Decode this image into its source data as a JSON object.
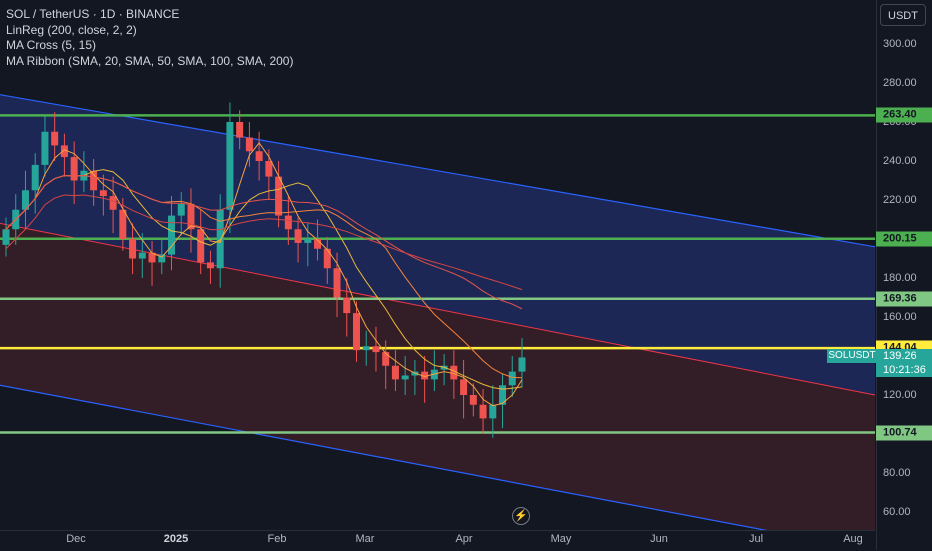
{
  "legend": {
    "symbol": "SOL / TetherUS · 1D · BINANCE",
    "indicator1": "LinReg (200, close, 2, 2)",
    "indicator2": "MA Cross (5, 15)",
    "indicator3": "MA Ribbon (SMA, 20, SMA, 50, SMA, 100, SMA, 200)"
  },
  "currency": "USDT",
  "price_axis": {
    "ticks": [
      "300.00",
      "280.00",
      "260.00",
      "240.00",
      "220.00",
      "200.00",
      "180.00",
      "160.00",
      "120.00",
      "80.00",
      "60.00"
    ]
  },
  "levels": [
    {
      "label": "263.40",
      "value": 263.4,
      "color": "#4caf50"
    },
    {
      "label": "200.15",
      "value": 200.15,
      "color": "#4caf50"
    },
    {
      "label": "169.36",
      "value": 169.36,
      "color": "#81c784"
    },
    {
      "label": "144.04",
      "value": 144.04,
      "color": "#ffeb3b"
    },
    {
      "label": "100.74",
      "value": 100.74,
      "color": "#81c784"
    }
  ],
  "last_price": {
    "symbol": "SOLUSDT",
    "price": "139.26",
    "countdown": "10:21:36"
  },
  "time_axis": {
    "labels": [
      {
        "text": "Dec",
        "bold": false
      },
      {
        "text": "2025",
        "bold": true
      },
      {
        "text": "Feb",
        "bold": false
      },
      {
        "text": "Mar",
        "bold": false
      },
      {
        "text": "Apr",
        "bold": false
      },
      {
        "text": "May",
        "bold": false
      },
      {
        "text": "Jun",
        "bold": false
      },
      {
        "text": "Jul",
        "bold": false
      },
      {
        "text": "Aug",
        "bold": false
      }
    ]
  },
  "colors": {
    "up": "#26a69a",
    "down": "#ef5350",
    "channel_upper": "#1e2a5e",
    "channel_lower": "#3a1e28",
    "channel_line": "#2962ff",
    "mid_line": "#f23645"
  },
  "chart_data": {
    "type": "candlestick",
    "x": [
      "Nov 12",
      "Nov 15",
      "Nov 18",
      "Nov 21",
      "Nov 24",
      "Nov 27",
      "Nov 30",
      "Dec 3",
      "Dec 6",
      "Dec 9",
      "Dec 12",
      "Dec 15",
      "Dec 18",
      "Dec 21",
      "Dec 24",
      "Dec 27",
      "Dec 30",
      "Jan 2",
      "Jan 5",
      "Jan 8",
      "Jan 11",
      "Jan 14",
      "Jan 17",
      "Jan 19",
      "Jan 22",
      "Jan 25",
      "Jan 28",
      "Jan 31",
      "Feb 3",
      "Feb 6",
      "Feb 9",
      "Feb 12",
      "Feb 15",
      "Feb 18",
      "Feb 21",
      "Feb 24",
      "Feb 27",
      "Mar 2",
      "Mar 5",
      "Mar 8",
      "Mar 11",
      "Mar 14",
      "Mar 17",
      "Mar 20",
      "Mar 23",
      "Mar 26",
      "Mar 29",
      "Apr 1",
      "Apr 4",
      "Apr 7",
      "Apr 10",
      "Apr 13",
      "Apr 16",
      "Apr 19"
    ],
    "close": [
      205,
      215,
      225,
      238,
      255,
      248,
      242,
      230,
      235,
      225,
      222,
      215,
      200,
      190,
      193,
      188,
      192,
      212,
      218,
      205,
      188,
      185,
      215,
      260,
      252,
      245,
      240,
      232,
      212,
      205,
      198,
      200,
      195,
      185,
      170,
      162,
      143,
      145,
      142,
      135,
      128,
      130,
      132,
      128,
      133,
      135,
      128,
      120,
      115,
      108,
      115,
      125,
      132,
      139.26
    ],
    "ylim": [
      55,
      310
    ],
    "series": [
      {
        "name": "LinReg channel upper",
        "start": 274,
        "end": 196
      },
      {
        "name": "LinReg channel mid",
        "start": 208,
        "end": 120
      },
      {
        "name": "LinReg channel lower",
        "start": 125,
        "end": 40
      }
    ]
  }
}
